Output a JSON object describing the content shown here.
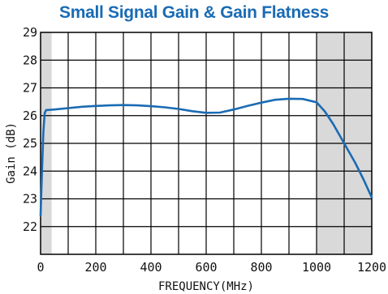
{
  "chart_data": {
    "type": "line",
    "title": "Small Signal Gain & Gain Flatness",
    "xlabel": "FREQUENCY(MHz)",
    "ylabel": "Gain (dB)",
    "xlim": [
      0,
      1200
    ],
    "ylim": [
      21,
      29
    ],
    "x_ticks": [
      0,
      200,
      400,
      600,
      800,
      1000,
      1200
    ],
    "y_ticks": [
      22,
      23,
      24,
      25,
      26,
      27,
      28,
      29
    ],
    "x_grid_step": 100,
    "y_grid_step": 1,
    "grid": true,
    "shaded_bands": [
      {
        "from": 0,
        "to": 40,
        "color": "#d9d9d9"
      },
      {
        "from": 1000,
        "to": 1200,
        "color": "#d9d9d9"
      }
    ],
    "line_color": "#1a6bb3",
    "series": [
      {
        "x": [
          0,
          5,
          10,
          15,
          20,
          50,
          100,
          150,
          200,
          250,
          300,
          350,
          400,
          450,
          500,
          550,
          600,
          650,
          700,
          750,
          800,
          850,
          900,
          950,
          1000,
          1030,
          1060,
          1100,
          1140,
          1170,
          1200
        ],
        "y": [
          22.4,
          24.0,
          25.4,
          26.1,
          26.2,
          26.22,
          26.27,
          26.32,
          26.35,
          26.37,
          26.38,
          26.37,
          26.34,
          26.3,
          26.24,
          26.16,
          26.1,
          26.11,
          26.22,
          26.35,
          26.47,
          26.57,
          26.61,
          26.6,
          26.48,
          26.15,
          25.7,
          25.0,
          24.3,
          23.7,
          23.05
        ]
      }
    ]
  }
}
